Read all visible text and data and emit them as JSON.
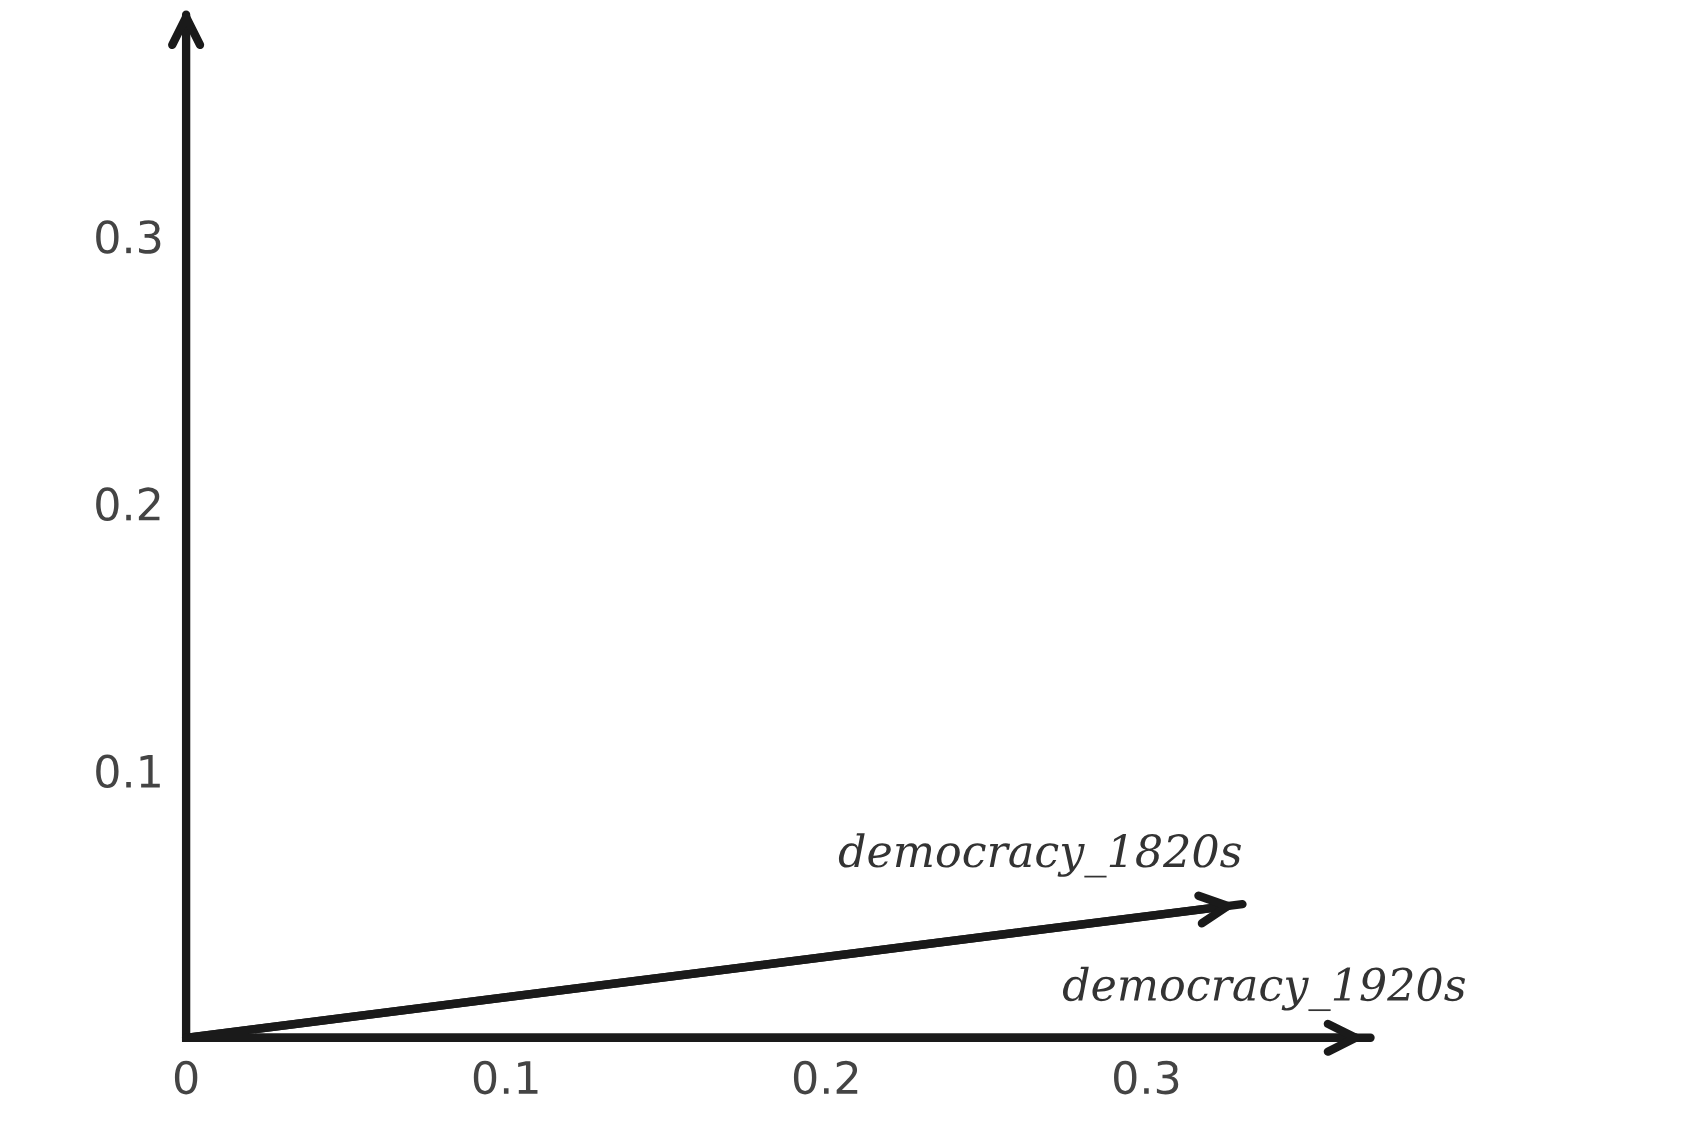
{
  "chart_data": {
    "type": "line",
    "series": [
      {
        "name": "democracy_1820s",
        "color": "#1a1a1a",
        "x": [
          0,
          0.33
        ],
        "values": [
          0,
          0.05
        ]
      },
      {
        "name": "democracy_1920s",
        "color": "#1a1a1a",
        "x": [
          0,
          0.37
        ],
        "values": [
          0,
          0
        ]
      }
    ],
    "xlim": [
      0,
      0.37
    ],
    "ylim": [
      0,
      0.38
    ],
    "xticks": [
      {
        "value": 0,
        "label": "0"
      },
      0.1,
      0.2,
      0.3
    ],
    "yticks": [
      0.1,
      0.2,
      0.3
    ],
    "grid": false,
    "marker": "none",
    "line_style": "solid"
  }
}
